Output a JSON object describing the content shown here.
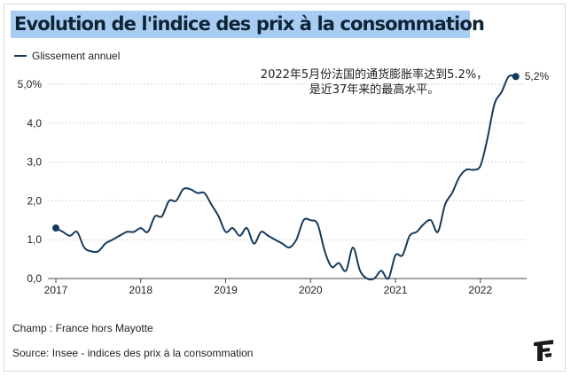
{
  "title": "Evolution de l'indice des prix à la consommation",
  "footer": {
    "scope": "Champ : France hors Mayotte",
    "source": "Source: Insee - indices des prix à la consommation"
  },
  "colors": {
    "line": "#163a5c",
    "title_band": "#a9cdf2",
    "grid": "#d6d6d6"
  },
  "logo": {
    "icon": "le-figaro-logo-icon"
  },
  "chart_data": {
    "type": "line",
    "title": "Evolution de l'indice des prix à la consommation",
    "xlabel": "",
    "ylabel": "",
    "xlim": [
      2017.0,
      2022.42
    ],
    "ylim": [
      0,
      5
    ],
    "y_ticks": [
      0,
      1,
      2,
      3,
      4,
      5
    ],
    "y_tick_labels": [
      "0,0",
      "1,0",
      "2,0",
      "3,0",
      "4,0",
      "5,0%"
    ],
    "x_ticks": [
      2017,
      2018,
      2019,
      2020,
      2021,
      2022
    ],
    "x_tick_labels": [
      "2017",
      "2018",
      "2019",
      "2020",
      "2021",
      "2022"
    ],
    "legend": [
      "Glissement annuel"
    ],
    "series": [
      {
        "name": "Glissement annuel",
        "x": [
          2017.0,
          2017.083,
          2017.167,
          2017.25,
          2017.333,
          2017.417,
          2017.5,
          2017.583,
          2017.667,
          2017.75,
          2017.833,
          2017.917,
          2018.0,
          2018.083,
          2018.167,
          2018.25,
          2018.333,
          2018.417,
          2018.5,
          2018.583,
          2018.667,
          2018.75,
          2018.833,
          2018.917,
          2019.0,
          2019.083,
          2019.167,
          2019.25,
          2019.333,
          2019.417,
          2019.5,
          2019.583,
          2019.667,
          2019.75,
          2019.833,
          2019.917,
          2020.0,
          2020.083,
          2020.167,
          2020.25,
          2020.333,
          2020.417,
          2020.5,
          2020.583,
          2020.667,
          2020.75,
          2020.833,
          2020.917,
          2021.0,
          2021.083,
          2021.167,
          2021.25,
          2021.333,
          2021.417,
          2021.5,
          2021.583,
          2021.667,
          2021.75,
          2021.833,
          2021.917,
          2022.0,
          2022.083,
          2022.167,
          2022.25,
          2022.333,
          2022.417
        ],
        "values": [
          1.3,
          1.2,
          1.1,
          1.2,
          0.8,
          0.7,
          0.7,
          0.9,
          1.0,
          1.1,
          1.2,
          1.2,
          1.3,
          1.2,
          1.6,
          1.6,
          2.0,
          2.0,
          2.3,
          2.3,
          2.2,
          2.2,
          1.9,
          1.6,
          1.2,
          1.3,
          1.1,
          1.3,
          0.9,
          1.2,
          1.1,
          1.0,
          0.9,
          0.8,
          1.0,
          1.5,
          1.5,
          1.4,
          0.7,
          0.3,
          0.4,
          0.2,
          0.8,
          0.2,
          0.0,
          0.0,
          0.2,
          0.0,
          0.6,
          0.6,
          1.1,
          1.2,
          1.4,
          1.5,
          1.2,
          1.9,
          2.2,
          2.6,
          2.8,
          2.8,
          2.9,
          3.6,
          4.5,
          4.8,
          5.2,
          5.2
        ]
      }
    ],
    "last_point": {
      "x": 2022.417,
      "value": 5.2,
      "label": "5,2%"
    },
    "annotation": {
      "line1": "2022年5月份法国的通货膨胀率达到5.2%，",
      "line2": "是近37年来的最高水平。"
    }
  }
}
